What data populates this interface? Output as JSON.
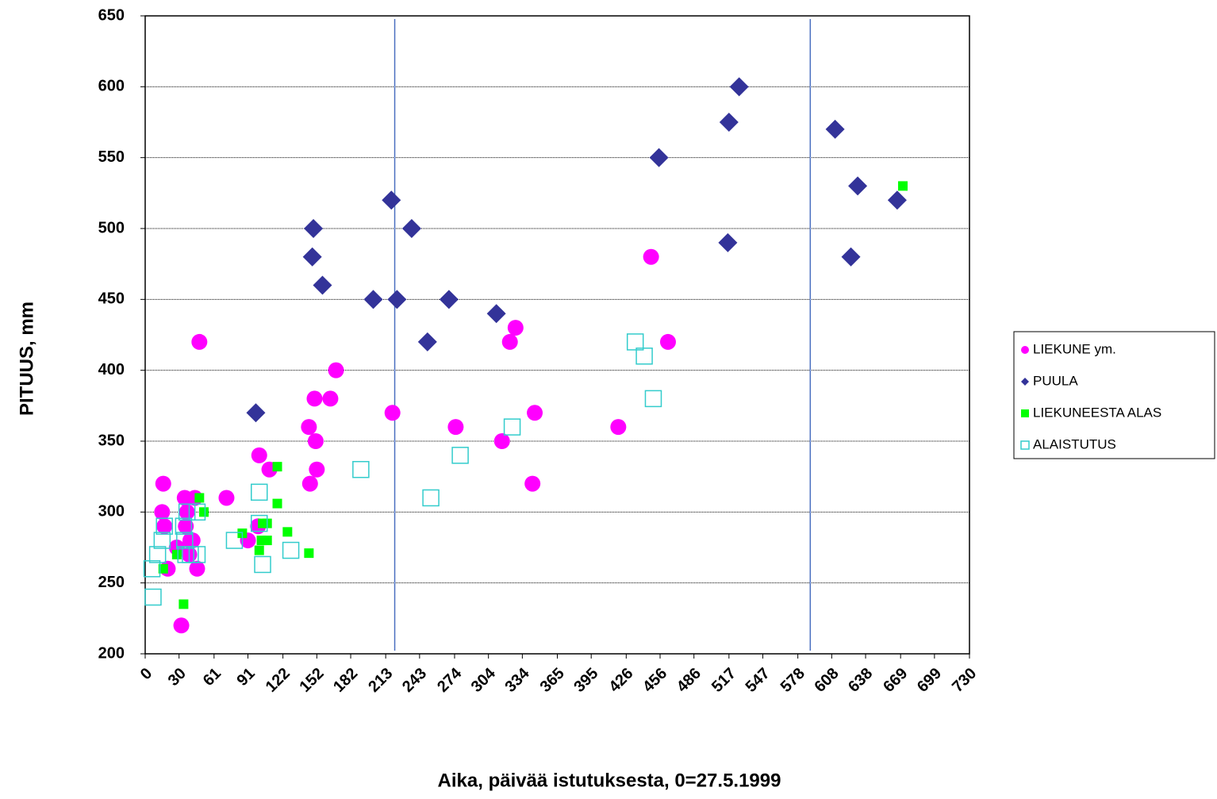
{
  "chart_data": {
    "type": "scatter",
    "xlabel": "Aika, päivää istutuksesta, 0=27.5.1999",
    "ylabel": "PITUUS, mm",
    "xlim": [
      0,
      730
    ],
    "ylim": [
      200,
      650
    ],
    "xticks": [
      0,
      30,
      61,
      91,
      122,
      152,
      182,
      213,
      243,
      274,
      304,
      334,
      365,
      395,
      426,
      456,
      486,
      517,
      547,
      578,
      608,
      638,
      669,
      699,
      730
    ],
    "yticks": [
      200,
      250,
      300,
      350,
      400,
      450,
      500,
      550,
      600,
      650
    ],
    "grid": true,
    "legend": "right",
    "vlines": [
      221,
      589
    ],
    "vline_color": "#4a6fc0",
    "series": [
      {
        "name": "LIEKUNE ym.",
        "color": "#ff00ff",
        "marker": "circle",
        "x": [
          48,
          16,
          15,
          17,
          20,
          28,
          32,
          35,
          37,
          36,
          40,
          44,
          42,
          46,
          39,
          72,
          91,
          101,
          100,
          110,
          146,
          145,
          150,
          151,
          152,
          164,
          169,
          219,
          275,
          316,
          323,
          328,
          345,
          343,
          419,
          448,
          463
        ],
        "values": [
          420,
          320,
          300,
          290,
          260,
          275,
          220,
          310,
          300,
          290,
          280,
          310,
          280,
          260,
          270,
          310,
          280,
          340,
          290,
          330,
          320,
          360,
          380,
          350,
          330,
          380,
          400,
          370,
          360,
          350,
          420,
          430,
          370,
          320,
          360,
          480,
          420
        ]
      },
      {
        "name": "PUULA",
        "color": "#333399",
        "marker": "diamond",
        "x": [
          98,
          149,
          148,
          157,
          202,
          218,
          223,
          236,
          250,
          269,
          311,
          455,
          517,
          526,
          516,
          611,
          631,
          625,
          666
        ],
        "values": [
          370,
          500,
          480,
          460,
          450,
          520,
          450,
          500,
          420,
          450,
          440,
          550,
          575,
          600,
          490,
          570,
          530,
          480,
          520
        ]
      },
      {
        "name": "LIEKUNEESTA ALAS",
        "color": "#00ff00",
        "marker": "square",
        "x": [
          16,
          28,
          34,
          48,
          52,
          86,
          103,
          101,
          104,
          108,
          108,
          117,
          117,
          126,
          145,
          671
        ],
        "values": [
          260,
          270,
          235,
          310,
          300,
          285,
          280,
          273,
          292,
          292,
          280,
          332,
          306,
          286,
          271,
          530
        ]
      },
      {
        "name": "ALAISTUTUS",
        "color": "#33cccc",
        "marker": "open-square",
        "x": [
          7,
          6,
          11,
          15,
          17,
          34,
          37,
          35,
          36,
          40,
          46,
          46,
          79,
          101,
          101,
          104,
          129,
          191,
          253,
          279,
          325,
          434,
          442,
          450
        ],
        "values": [
          240,
          260,
          270,
          280,
          290,
          290,
          300,
          280,
          270,
          270,
          270,
          300,
          280,
          314,
          292,
          263,
          273,
          330,
          310,
          340,
          360,
          420,
          410,
          380
        ]
      }
    ]
  }
}
